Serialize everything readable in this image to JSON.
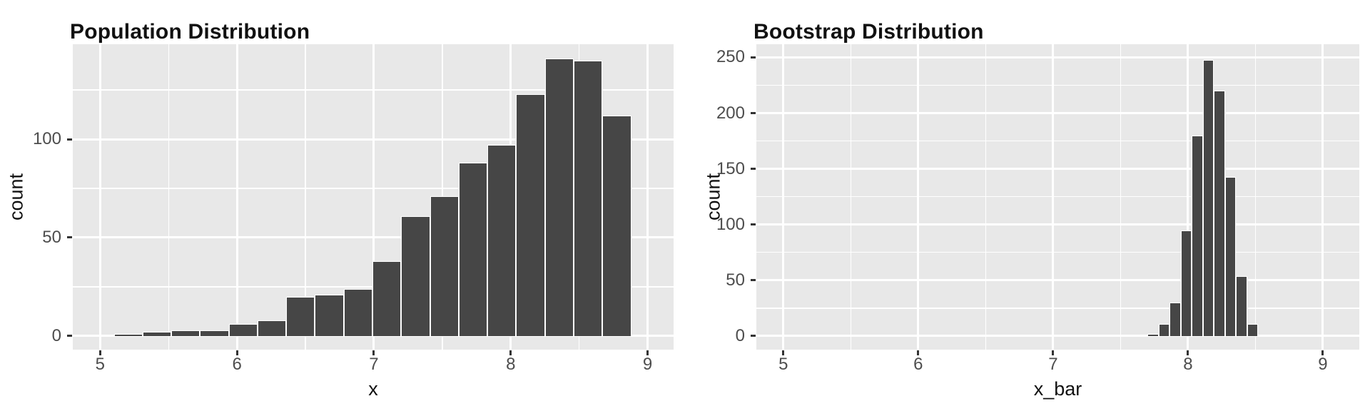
{
  "page": {
    "background": "#ffffff",
    "description": "Two side-by-side ggplot-style histograms"
  },
  "colors": {
    "panel_background": "#E8E8E8",
    "grid_line": "#FFFFFF",
    "bar_fill": "#464646",
    "bar_stroke": "#FFFFFF",
    "tick_label_text": "#4D4D4D",
    "title_text": "#111111",
    "tick_mark": "#333333"
  },
  "chart_data": [
    {
      "type": "bar",
      "subtype": "histogram",
      "title": "Population Distribution",
      "xlabel": "x",
      "ylabel": "count",
      "x_ticks": [
        5,
        6,
        7,
        8,
        9
      ],
      "x_minor_ticks": [
        5.5,
        6.5,
        7.5,
        8.5
      ],
      "y_ticks": [
        0,
        50,
        100
      ],
      "y_minor_ticks": [
        25,
        75,
        125
      ],
      "x_domain": [
        4.8,
        9.19
      ],
      "y_domain": [
        -6.9,
        148.2
      ],
      "grid": true,
      "legend": "none",
      "bins": {
        "start": 5.1,
        "width": 0.21
      },
      "counts": [
        1,
        2,
        3,
        3,
        6,
        8,
        20,
        21,
        24,
        38,
        61,
        71,
        88,
        97,
        123,
        141,
        140,
        112
      ]
    },
    {
      "type": "bar",
      "subtype": "histogram",
      "title": "Bootstrap Distribution",
      "xlabel": "x_bar",
      "ylabel": "count",
      "x_ticks": [
        5,
        6,
        7,
        8,
        9
      ],
      "x_minor_ticks": [
        5.5,
        6.5,
        7.5,
        8.5
      ],
      "y_ticks": [
        0,
        50,
        100,
        150,
        200,
        250
      ],
      "y_minor_ticks": [
        25,
        75,
        125,
        175,
        225
      ],
      "x_domain": [
        4.8,
        9.27
      ],
      "y_domain": [
        -12.2,
        261.8
      ],
      "grid": true,
      "legend": "none",
      "bins": {
        "start": 7.7,
        "width": 0.082
      },
      "counts": [
        2,
        11,
        30,
        95,
        180,
        248,
        220,
        143,
        54,
        11
      ]
    }
  ]
}
